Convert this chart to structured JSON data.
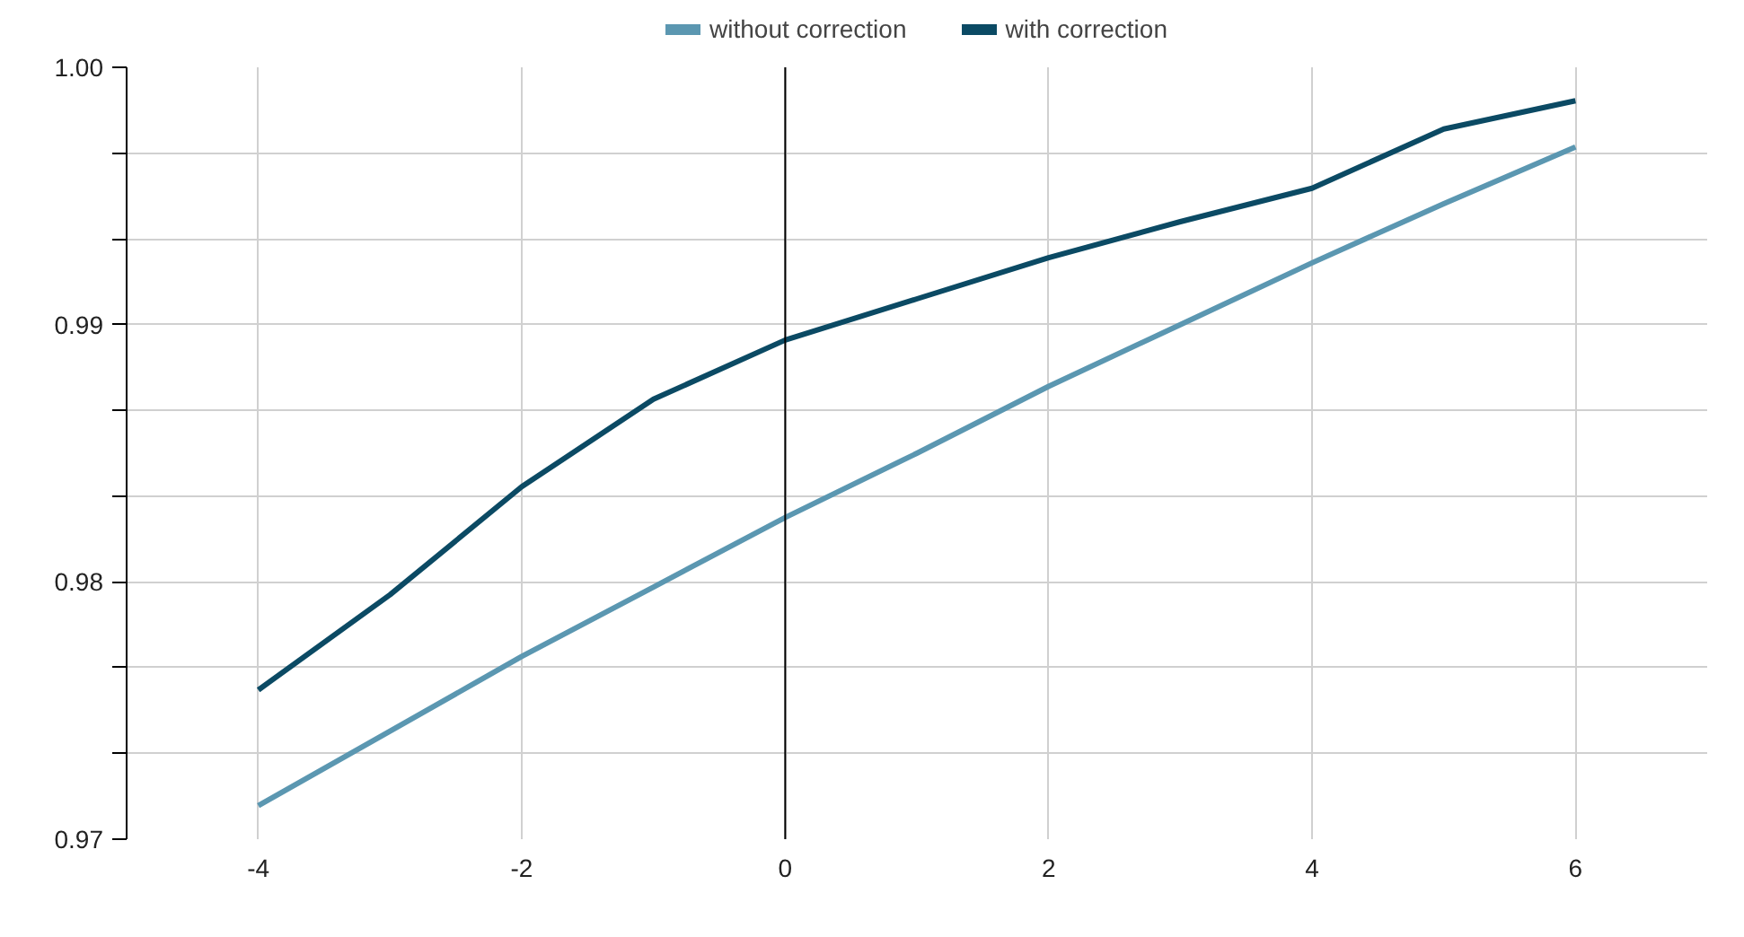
{
  "chart_data": {
    "type": "line",
    "x": [
      -4,
      -3,
      -2,
      -1,
      0,
      1,
      2,
      3,
      4,
      5,
      6
    ],
    "series": [
      {
        "name": "without correction",
        "color": "#5b97b1",
        "values": [
          0.9713,
          0.9742,
          0.9771,
          0.9798,
          0.9825,
          0.985,
          0.9876,
          0.99,
          0.9924,
          0.9947,
          0.9969
        ]
      },
      {
        "name": "with correction",
        "color": "#0b4a64",
        "values": [
          0.9758,
          0.9795,
          0.9837,
          0.9871,
          0.9894,
          0.991,
          0.9926,
          0.994,
          0.9953,
          0.9976,
          0.9987
        ]
      }
    ],
    "xlim": [
      -5,
      7
    ],
    "xticks": [
      -4,
      -2,
      0,
      2,
      4,
      6
    ],
    "ylim": [
      0.97,
      1.0
    ],
    "yticks": [
      {
        "value": 0.97,
        "label": "0.97"
      },
      {
        "value": 0.97333,
        "label": null
      },
      {
        "value": 0.97667,
        "label": null
      },
      {
        "value": 0.98,
        "label": "0.98"
      },
      {
        "value": 0.98333,
        "label": null
      },
      {
        "value": 0.98667,
        "label": null
      },
      {
        "value": 0.99,
        "label": "0.99"
      },
      {
        "value": 0.99333,
        "label": null
      },
      {
        "value": 0.99667,
        "label": null
      },
      {
        "value": 1.0,
        "label": "1.00"
      }
    ],
    "ref_lines": [
      {
        "axis": "x",
        "value": 0,
        "color": "#000000"
      }
    ],
    "grid": true,
    "legend": "top",
    "marker": "none",
    "line_style": "solid"
  }
}
